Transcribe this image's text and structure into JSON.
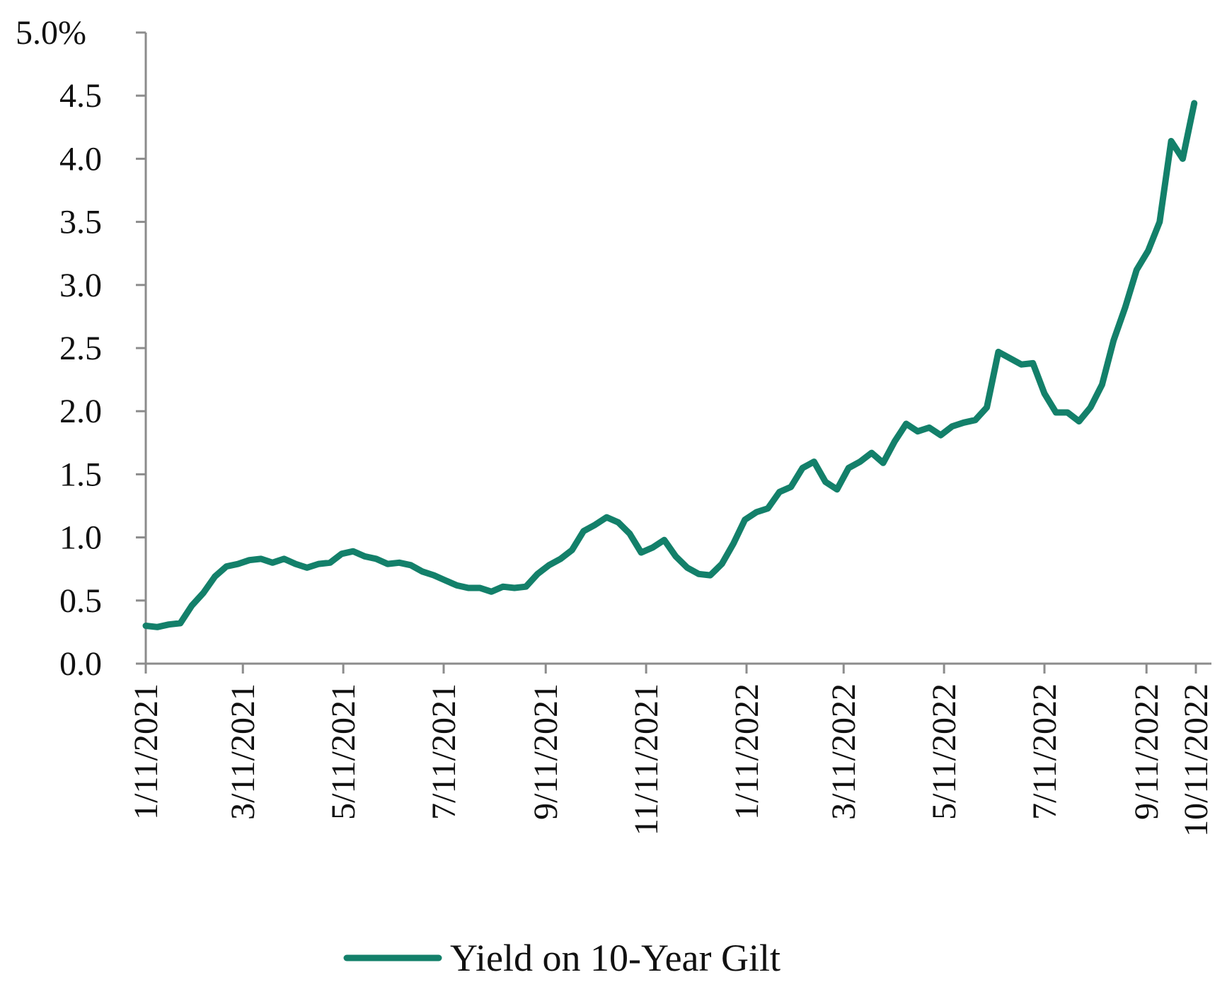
{
  "chart_data": {
    "type": "line",
    "title": "",
    "xlabel": "",
    "ylabel": "",
    "ylim": [
      0,
      5.0
    ],
    "y_ticks": [
      0.0,
      0.5,
      1.0,
      1.5,
      2.0,
      2.5,
      3.0,
      3.5,
      4.0,
      4.5,
      5.0
    ],
    "y_tick_labels": [
      "0.0",
      "0.5",
      "1.0",
      "1.5",
      "2.0",
      "2.5",
      "3.0",
      "3.5",
      "4.0",
      "4.5",
      "5.0%"
    ],
    "x_range": [
      "2021-01-11",
      "2022-10-11"
    ],
    "x_tick_labels": [
      "1/11/2021",
      "3/11/2021",
      "5/11/2021",
      "7/11/2021",
      "9/11/2021",
      "11/11/2021",
      "1/11/2022",
      "3/11/2022",
      "5/11/2022",
      "7/11/2022",
      "9/11/2022",
      "10/11/2022"
    ],
    "x_tick_dates": [
      "2021-01-11",
      "2021-03-11",
      "2021-05-11",
      "2021-07-11",
      "2021-09-11",
      "2021-11-11",
      "2022-01-11",
      "2022-03-11",
      "2022-05-11",
      "2022-07-11",
      "2022-09-11",
      "2022-10-11"
    ],
    "grid": false,
    "legend_position": "bottom-center",
    "colors": {
      "series": "#13806a",
      "axis": "#8c8c8c"
    },
    "series": [
      {
        "name": "Yield on 10-Year Gilt",
        "x": [
          "2021-01-11",
          "2021-01-18",
          "2021-01-25",
          "2021-02-01",
          "2021-02-08",
          "2021-02-15",
          "2021-02-22",
          "2021-03-01",
          "2021-03-08",
          "2021-03-15",
          "2021-03-22",
          "2021-03-29",
          "2021-04-05",
          "2021-04-12",
          "2021-04-19",
          "2021-04-26",
          "2021-05-03",
          "2021-05-10",
          "2021-05-17",
          "2021-05-24",
          "2021-05-31",
          "2021-06-07",
          "2021-06-14",
          "2021-06-21",
          "2021-06-28",
          "2021-07-05",
          "2021-07-12",
          "2021-07-19",
          "2021-07-26",
          "2021-08-02",
          "2021-08-09",
          "2021-08-16",
          "2021-08-23",
          "2021-08-30",
          "2021-09-06",
          "2021-09-13",
          "2021-09-20",
          "2021-09-27",
          "2021-10-04",
          "2021-10-11",
          "2021-10-18",
          "2021-10-25",
          "2021-11-01",
          "2021-11-08",
          "2021-11-15",
          "2021-11-22",
          "2021-11-29",
          "2021-12-06",
          "2021-12-13",
          "2021-12-20",
          "2021-12-27",
          "2022-01-03",
          "2022-01-10",
          "2022-01-17",
          "2022-01-24",
          "2022-01-31",
          "2022-02-07",
          "2022-02-14",
          "2022-02-21",
          "2022-02-28",
          "2022-03-07",
          "2022-03-14",
          "2022-03-21",
          "2022-03-28",
          "2022-04-04",
          "2022-04-11",
          "2022-04-18",
          "2022-04-25",
          "2022-05-02",
          "2022-05-09",
          "2022-05-16",
          "2022-05-23",
          "2022-05-30",
          "2022-06-06",
          "2022-06-13",
          "2022-06-20",
          "2022-06-27",
          "2022-07-04",
          "2022-07-11",
          "2022-07-18",
          "2022-07-25",
          "2022-08-01",
          "2022-08-08",
          "2022-08-15",
          "2022-08-22",
          "2022-08-29",
          "2022-09-05",
          "2022-09-12",
          "2022-09-19",
          "2022-09-26",
          "2022-10-03",
          "2022-10-10"
        ],
        "values": [
          0.3,
          0.29,
          0.31,
          0.32,
          0.46,
          0.56,
          0.69,
          0.77,
          0.79,
          0.82,
          0.83,
          0.8,
          0.83,
          0.79,
          0.76,
          0.79,
          0.8,
          0.87,
          0.89,
          0.85,
          0.83,
          0.79,
          0.8,
          0.78,
          0.73,
          0.7,
          0.66,
          0.62,
          0.6,
          0.6,
          0.57,
          0.61,
          0.6,
          0.61,
          0.71,
          0.78,
          0.83,
          0.9,
          1.05,
          1.1,
          1.16,
          1.12,
          1.03,
          0.88,
          0.92,
          0.98,
          0.85,
          0.76,
          0.71,
          0.7,
          0.79,
          0.95,
          1.14,
          1.2,
          1.23,
          1.36,
          1.4,
          1.55,
          1.6,
          1.44,
          1.38,
          1.55,
          1.6,
          1.67,
          1.59,
          1.76,
          1.9,
          1.84,
          1.87,
          1.81,
          1.88,
          1.91,
          1.93,
          2.03,
          2.47,
          2.42,
          2.37,
          2.38,
          2.14,
          1.99,
          1.99,
          1.92,
          2.03,
          2.21,
          2.56,
          2.82,
          3.12,
          3.27,
          3.5,
          4.14,
          4.0,
          4.44
        ]
      }
    ]
  }
}
